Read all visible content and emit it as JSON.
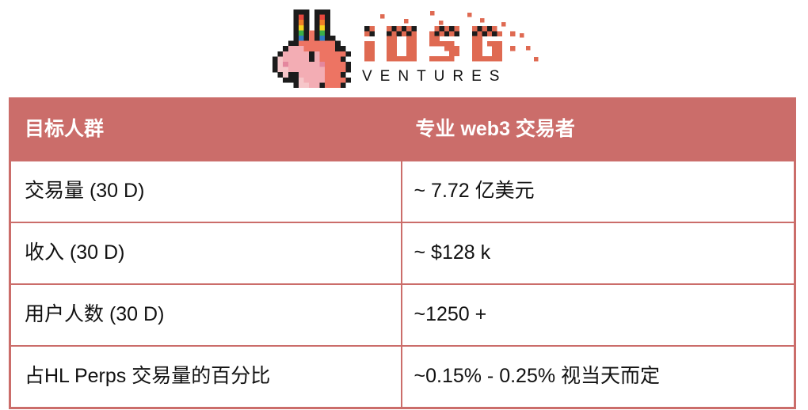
{
  "logo": {
    "brand": "IOSG",
    "subbrand": "VENTURES",
    "mascot": "pixel-llama-icon"
  },
  "colors": {
    "table_accent": "#cb6d6a",
    "header_text": "#ffffff",
    "cell_text": "#111111",
    "logo_salmon": "#df6a52",
    "llama_mane": "#ed7463",
    "llama_face": "#f3adb4"
  },
  "table": {
    "columns": [
      {
        "header": "目标人群"
      },
      {
        "header": "专业 web3 交易者"
      }
    ],
    "rows": [
      {
        "label": "交易量 (30 D)",
        "value": "~ 7.72 亿美元"
      },
      {
        "label": "收入 (30 D)",
        "value": "~ $128 k"
      },
      {
        "label": "用户人数 (30 D)",
        "value": "~1250 +"
      },
      {
        "label": "占HL Perps 交易量的百分比",
        "value": "~0.15% - 0.25% 视当天而定"
      }
    ]
  }
}
